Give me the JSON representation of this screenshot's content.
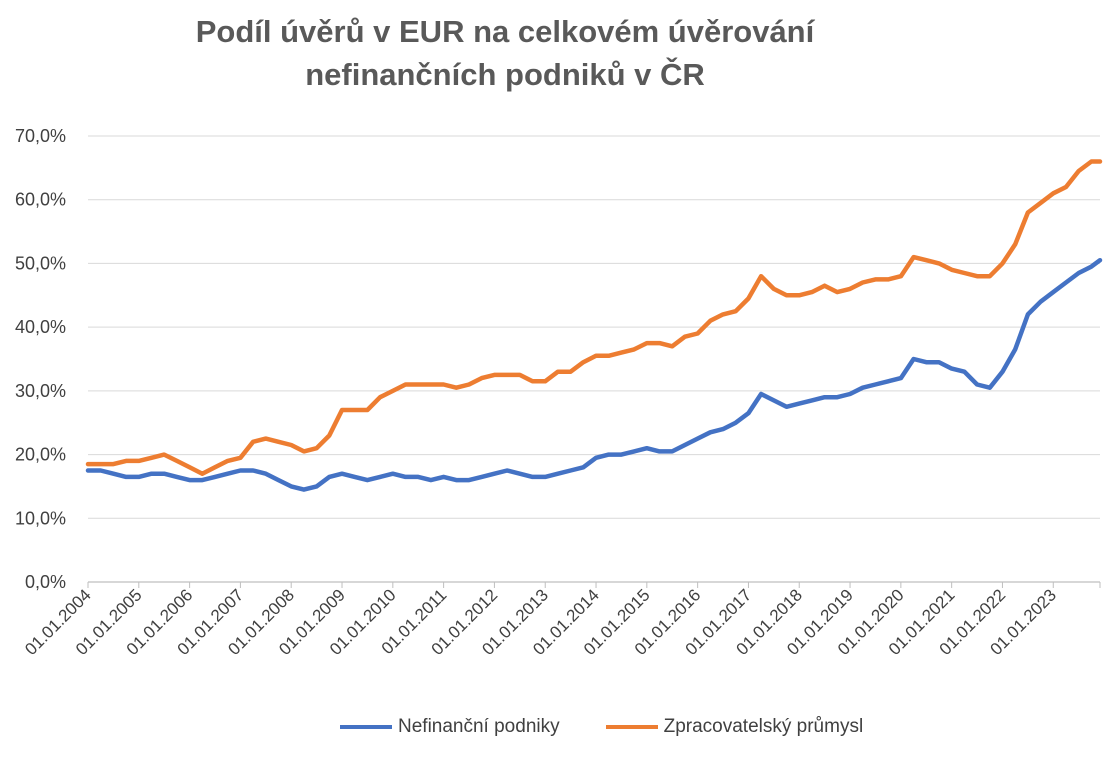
{
  "chart_data": {
    "type": "line",
    "title_line1": "Podíl úvěrů v EUR na celkovém úvěrování",
    "title_line2": "nefinančních podniků v ČR",
    "xlabel": "",
    "ylabel": "",
    "ylim": [
      0,
      70
    ],
    "y_ticks": [
      0,
      10,
      20,
      30,
      40,
      50,
      60,
      70
    ],
    "y_tick_labels": [
      "0,0%",
      "10,0%",
      "20,0%",
      "30,0%",
      "40,0%",
      "50,0%",
      "60,0%",
      "70,0%"
    ],
    "x_tick_labels": [
      "01.01.2004",
      "01.01.2005",
      "01.01.2006",
      "01.01.2007",
      "01.01.2008",
      "01.01.2009",
      "01.01.2010",
      "01.01.2011",
      "01.01.2012",
      "01.01.2013",
      "01.01.2014",
      "01.01.2015",
      "01.01.2016",
      "01.01.2017",
      "01.01.2018",
      "01.01.2019",
      "01.01.2020",
      "01.01.2021",
      "01.01.2022",
      "01.01.2023"
    ],
    "x_range": [
      2004.0,
      2023.92
    ],
    "grid": true,
    "legend_position": "bottom",
    "series": [
      {
        "name": "Nefinanční podniky",
        "color": "#4472C4",
        "points": [
          [
            2004.0,
            17.5
          ],
          [
            2004.25,
            17.5
          ],
          [
            2004.5,
            17.0
          ],
          [
            2004.75,
            16.5
          ],
          [
            2005.0,
            16.5
          ],
          [
            2005.25,
            17.0
          ],
          [
            2005.5,
            17.0
          ],
          [
            2005.75,
            16.5
          ],
          [
            2006.0,
            16.0
          ],
          [
            2006.25,
            16.0
          ],
          [
            2006.5,
            16.5
          ],
          [
            2006.75,
            17.0
          ],
          [
            2007.0,
            17.5
          ],
          [
            2007.25,
            17.5
          ],
          [
            2007.5,
            17.0
          ],
          [
            2007.75,
            16.0
          ],
          [
            2008.0,
            15.0
          ],
          [
            2008.25,
            14.5
          ],
          [
            2008.5,
            15.0
          ],
          [
            2008.75,
            16.5
          ],
          [
            2009.0,
            17.0
          ],
          [
            2009.25,
            16.5
          ],
          [
            2009.5,
            16.0
          ],
          [
            2009.75,
            16.5
          ],
          [
            2010.0,
            17.0
          ],
          [
            2010.25,
            16.5
          ],
          [
            2010.5,
            16.5
          ],
          [
            2010.75,
            16.0
          ],
          [
            2011.0,
            16.5
          ],
          [
            2011.25,
            16.0
          ],
          [
            2011.5,
            16.0
          ],
          [
            2011.75,
            16.5
          ],
          [
            2012.0,
            17.0
          ],
          [
            2012.25,
            17.5
          ],
          [
            2012.5,
            17.0
          ],
          [
            2012.75,
            16.5
          ],
          [
            2013.0,
            16.5
          ],
          [
            2013.25,
            17.0
          ],
          [
            2013.5,
            17.5
          ],
          [
            2013.75,
            18.0
          ],
          [
            2014.0,
            19.5
          ],
          [
            2014.25,
            20.0
          ],
          [
            2014.5,
            20.0
          ],
          [
            2014.75,
            20.5
          ],
          [
            2015.0,
            21.0
          ],
          [
            2015.25,
            20.5
          ],
          [
            2015.5,
            20.5
          ],
          [
            2015.75,
            21.5
          ],
          [
            2016.0,
            22.5
          ],
          [
            2016.25,
            23.5
          ],
          [
            2016.5,
            24.0
          ],
          [
            2016.75,
            25.0
          ],
          [
            2017.0,
            26.5
          ],
          [
            2017.25,
            29.5
          ],
          [
            2017.5,
            28.5
          ],
          [
            2017.75,
            27.5
          ],
          [
            2018.0,
            28.0
          ],
          [
            2018.25,
            28.5
          ],
          [
            2018.5,
            29.0
          ],
          [
            2018.75,
            29.0
          ],
          [
            2019.0,
            29.5
          ],
          [
            2019.25,
            30.5
          ],
          [
            2019.5,
            31.0
          ],
          [
            2019.75,
            31.5
          ],
          [
            2020.0,
            32.0
          ],
          [
            2020.25,
            35.0
          ],
          [
            2020.5,
            34.5
          ],
          [
            2020.75,
            34.5
          ],
          [
            2021.0,
            33.5
          ],
          [
            2021.25,
            33.0
          ],
          [
            2021.5,
            31.0
          ],
          [
            2021.75,
            30.5
          ],
          [
            2022.0,
            33.0
          ],
          [
            2022.25,
            36.5
          ],
          [
            2022.5,
            42.0
          ],
          [
            2022.75,
            44.0
          ],
          [
            2023.0,
            45.5
          ],
          [
            2023.25,
            47.0
          ],
          [
            2023.5,
            48.5
          ],
          [
            2023.75,
            49.5
          ],
          [
            2023.92,
            50.5
          ]
        ]
      },
      {
        "name": "Zpracovatelský průmysl",
        "color": "#ED7D31",
        "points": [
          [
            2004.0,
            18.5
          ],
          [
            2004.25,
            18.5
          ],
          [
            2004.5,
            18.5
          ],
          [
            2004.75,
            19.0
          ],
          [
            2005.0,
            19.0
          ],
          [
            2005.25,
            19.5
          ],
          [
            2005.5,
            20.0
          ],
          [
            2005.75,
            19.0
          ],
          [
            2006.0,
            18.0
          ],
          [
            2006.25,
            17.0
          ],
          [
            2006.5,
            18.0
          ],
          [
            2006.75,
            19.0
          ],
          [
            2007.0,
            19.5
          ],
          [
            2007.25,
            22.0
          ],
          [
            2007.5,
            22.5
          ],
          [
            2007.75,
            22.0
          ],
          [
            2008.0,
            21.5
          ],
          [
            2008.25,
            20.5
          ],
          [
            2008.5,
            21.0
          ],
          [
            2008.75,
            23.0
          ],
          [
            2009.0,
            27.0
          ],
          [
            2009.25,
            27.0
          ],
          [
            2009.5,
            27.0
          ],
          [
            2009.75,
            29.0
          ],
          [
            2010.0,
            30.0
          ],
          [
            2010.25,
            31.0
          ],
          [
            2010.5,
            31.0
          ],
          [
            2010.75,
            31.0
          ],
          [
            2011.0,
            31.0
          ],
          [
            2011.25,
            30.5
          ],
          [
            2011.5,
            31.0
          ],
          [
            2011.75,
            32.0
          ],
          [
            2012.0,
            32.5
          ],
          [
            2012.25,
            32.5
          ],
          [
            2012.5,
            32.5
          ],
          [
            2012.75,
            31.5
          ],
          [
            2013.0,
            31.5
          ],
          [
            2013.25,
            33.0
          ],
          [
            2013.5,
            33.0
          ],
          [
            2013.75,
            34.5
          ],
          [
            2014.0,
            35.5
          ],
          [
            2014.25,
            35.5
          ],
          [
            2014.5,
            36.0
          ],
          [
            2014.75,
            36.5
          ],
          [
            2015.0,
            37.5
          ],
          [
            2015.25,
            37.5
          ],
          [
            2015.5,
            37.0
          ],
          [
            2015.75,
            38.5
          ],
          [
            2016.0,
            39.0
          ],
          [
            2016.25,
            41.0
          ],
          [
            2016.5,
            42.0
          ],
          [
            2016.75,
            42.5
          ],
          [
            2017.0,
            44.5
          ],
          [
            2017.25,
            48.0
          ],
          [
            2017.5,
            46.0
          ],
          [
            2017.75,
            45.0
          ],
          [
            2018.0,
            45.0
          ],
          [
            2018.25,
            45.5
          ],
          [
            2018.5,
            46.5
          ],
          [
            2018.75,
            45.5
          ],
          [
            2019.0,
            46.0
          ],
          [
            2019.25,
            47.0
          ],
          [
            2019.5,
            47.5
          ],
          [
            2019.75,
            47.5
          ],
          [
            2020.0,
            48.0
          ],
          [
            2020.25,
            51.0
          ],
          [
            2020.5,
            50.5
          ],
          [
            2020.75,
            50.0
          ],
          [
            2021.0,
            49.0
          ],
          [
            2021.25,
            48.5
          ],
          [
            2021.5,
            48.0
          ],
          [
            2021.75,
            48.0
          ],
          [
            2022.0,
            50.0
          ],
          [
            2022.25,
            53.0
          ],
          [
            2022.5,
            58.0
          ],
          [
            2022.75,
            59.5
          ],
          [
            2023.0,
            61.0
          ],
          [
            2023.25,
            62.0
          ],
          [
            2023.5,
            64.5
          ],
          [
            2023.75,
            66.0
          ],
          [
            2023.92,
            66.0
          ]
        ]
      }
    ]
  }
}
